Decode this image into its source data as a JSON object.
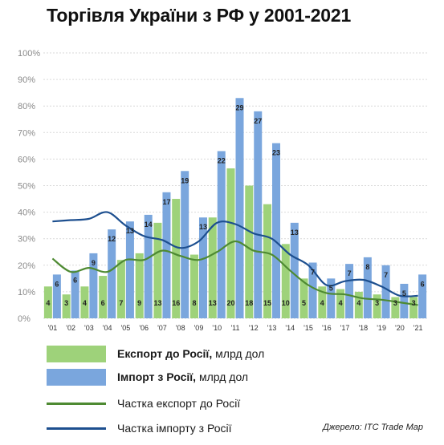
{
  "title": "Торгівля України з РФ у 2001-2021",
  "source": "Джерело: ITC Trade Map",
  "legend": {
    "export_name": "Експорт до Росії,",
    "export_unit": "млрд дол",
    "import_name": "Імпорт з Росії,",
    "import_unit": "млрд дол",
    "export_share": "Частка експорт до Росії",
    "import_share": "Частка імпорту з Росії"
  },
  "colors": {
    "export_bar": "#9ed27a",
    "import_bar": "#7aa6dd",
    "export_line": "#4e8a32",
    "import_line": "#1d4f8f",
    "grid": "#d9d9d9",
    "axis_text": "#8a8a8a"
  },
  "chart_data": {
    "type": "bar",
    "categories": [
      "'01",
      "'02",
      "'03",
      "'04",
      "'05",
      "'06",
      "'07",
      "'08",
      "'09",
      "'10",
      "'11",
      "'12",
      "'13",
      "'14",
      "'15",
      "'16",
      "'17",
      "'18",
      "'19",
      "'20",
      "'21"
    ],
    "yticks": [
      "0%",
      "10%",
      "20%",
      "30%",
      "40%",
      "50%",
      "60%",
      "70%",
      "80%",
      "90%",
      "100%"
    ],
    "ylim": [
      0,
      100
    ],
    "grid": true,
    "series": [
      {
        "name": "Експорт до Росії, млрд дол",
        "kind": "bar",
        "values_pct": [
          12,
          9,
          12,
          16,
          22,
          24.5,
          36,
          45,
          24,
          38,
          56.5,
          50,
          43,
          28,
          15,
          12,
          11,
          10,
          9,
          8,
          8
        ],
        "labels": [
          "4",
          "3",
          "4",
          "6",
          "7",
          "9",
          "13",
          "16",
          "8",
          "13",
          "20",
          "18",
          "15",
          "10",
          "5",
          "4",
          "4",
          "4",
          "3",
          "3",
          "3"
        ]
      },
      {
        "name": "Імпорт з Росії, млрд дол",
        "kind": "bar",
        "values_pct": [
          16.5,
          18,
          24.5,
          33.5,
          36.5,
          39,
          47.5,
          55.5,
          38,
          63,
          83,
          78,
          66,
          36,
          21,
          15,
          20.5,
          23,
          20,
          13,
          16.5
        ],
        "labels": [
          "6",
          "6",
          "9",
          "12",
          "13",
          "14",
          "17",
          "19",
          "13",
          "22",
          "29",
          "27",
          "23",
          "13",
          "7",
          "5",
          "7",
          "8",
          "7",
          "5",
          "6"
        ]
      },
      {
        "name": "Частка експорт до Росії",
        "kind": "line",
        "values": [
          22.5,
          17.5,
          19,
          17.5,
          22,
          22,
          25.5,
          23.5,
          22,
          25,
          29,
          25.5,
          24,
          18,
          12.5,
          9.5,
          9,
          7.5,
          7,
          6,
          5
        ]
      },
      {
        "name": "Частка імпорту з Росії",
        "kind": "line",
        "values": [
          36.5,
          37,
          37.5,
          40,
          35,
          31,
          29.5,
          26.5,
          29,
          36,
          35.5,
          32,
          30,
          24,
          20,
          12.5,
          14,
          14.5,
          12,
          8.5,
          8.5
        ]
      }
    ]
  }
}
